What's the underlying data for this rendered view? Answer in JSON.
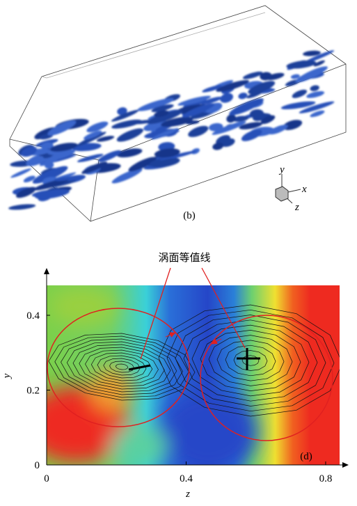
{
  "panel_b": {
    "label": "(b)",
    "axis_y": "y",
    "axis_x": "x",
    "axis_z": "z"
  },
  "chart_data": {
    "type": "contour",
    "annotation": "涡面等值线",
    "panel_label": "(d)",
    "x_label": "z",
    "y_label": "y",
    "xlim": [
      0,
      0.84
    ],
    "xticks": [
      0,
      0.4,
      0.8
    ],
    "ylim": [
      0,
      0.48
    ],
    "yticks": [
      0,
      0.2,
      0.4
    ]
  }
}
